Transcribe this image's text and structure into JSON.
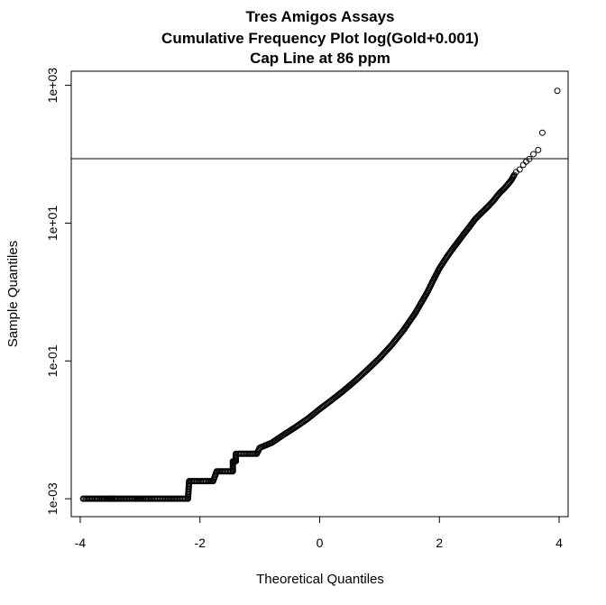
{
  "chart_data": {
    "type": "scatter",
    "title": [
      "Tres Amigos Assays",
      "Cumulative Frequency Plot log(Gold+0.001)",
      "Cap Line at 86 ppm"
    ],
    "xlabel": "Theoretical Quantiles",
    "ylabel": "Sample Quantiles",
    "x_ticks": [
      {
        "value": -4,
        "label": "-4"
      },
      {
        "value": -2,
        "label": "-2"
      },
      {
        "value": 0,
        "label": "0"
      },
      {
        "value": 2,
        "label": "2"
      },
      {
        "value": 4,
        "label": "4"
      }
    ],
    "y_ticks": [
      {
        "value": 0.001,
        "label": "1e-03"
      },
      {
        "value": 0.1,
        "label": "1e-01"
      },
      {
        "value": 10,
        "label": "1e+01"
      },
      {
        "value": 1000,
        "label": "1e+03"
      }
    ],
    "xlim": [
      -4.15,
      4.15
    ],
    "ylim": [
      0.00055,
      1600
    ],
    "y_scale": "log",
    "grid": false,
    "cap_line": {
      "value": 86,
      "label": "Cap Line at 86 ppm"
    },
    "curve_points": [
      [
        -3.95,
        0.001
      ],
      [
        -3.75,
        0.001
      ],
      [
        -3.6,
        0.001
      ],
      [
        -3.5,
        0.001
      ],
      [
        -3.4,
        0.001
      ],
      [
        -3.33,
        0.001
      ],
      [
        -3.27,
        0.001
      ],
      [
        -3.2,
        0.001
      ],
      [
        -3.13,
        0.001
      ],
      [
        -3.05,
        0.001
      ],
      [
        -2.95,
        0.001
      ],
      [
        -2.8,
        0.001
      ],
      [
        -2.6,
        0.001
      ],
      [
        -2.4,
        0.001
      ],
      [
        -2.2,
        0.001
      ],
      [
        -2.18,
        0.0018
      ],
      [
        -2.05,
        0.0018
      ],
      [
        -1.9,
        0.0018
      ],
      [
        -1.78,
        0.0018
      ],
      [
        -1.72,
        0.0025
      ],
      [
        -1.6,
        0.0025
      ],
      [
        -1.45,
        0.0025
      ],
      [
        -1.45,
        0.0035
      ],
      [
        -1.4,
        0.0035
      ],
      [
        -1.4,
        0.0045
      ],
      [
        -1.2,
        0.0045
      ],
      [
        -1.05,
        0.0045
      ],
      [
        -1.0,
        0.0055
      ],
      [
        -0.8,
        0.0065
      ],
      [
        -0.6,
        0.0085
      ],
      [
        -0.4,
        0.011
      ],
      [
        -0.2,
        0.0145
      ],
      [
        0.0,
        0.02
      ],
      [
        0.2,
        0.027
      ],
      [
        0.4,
        0.037
      ],
      [
        0.6,
        0.052
      ],
      [
        0.8,
        0.075
      ],
      [
        1.0,
        0.11
      ],
      [
        1.2,
        0.17
      ],
      [
        1.4,
        0.28
      ],
      [
        1.6,
        0.5
      ],
      [
        1.8,
        1.0
      ],
      [
        1.9,
        1.5
      ],
      [
        2.0,
        2.2
      ],
      [
        2.1,
        3.0
      ],
      [
        2.2,
        4.0
      ],
      [
        2.3,
        5.2
      ],
      [
        2.4,
        6.8
      ],
      [
        2.5,
        8.8
      ],
      [
        2.6,
        11.5
      ],
      [
        2.7,
        14.0
      ],
      [
        2.8,
        17.0
      ],
      [
        2.9,
        21.0
      ],
      [
        3.0,
        27.0
      ],
      [
        3.1,
        33.0
      ],
      [
        3.2,
        42.0
      ],
      [
        3.25,
        50.0
      ]
    ],
    "outliers": [
      [
        -3.95,
        0.001
      ],
      [
        -3.72,
        0.001
      ],
      [
        -3.6,
        0.001
      ],
      [
        -3.5,
        0.001
      ],
      [
        -3.42,
        0.001
      ],
      [
        3.28,
        55.0
      ],
      [
        3.34,
        60.0
      ],
      [
        3.4,
        70.0
      ],
      [
        3.45,
        78.0
      ],
      [
        3.5,
        85.0
      ],
      [
        3.57,
        100.0
      ],
      [
        3.65,
        115.0
      ],
      [
        3.72,
        205.0
      ],
      [
        3.97,
        830.0
      ]
    ]
  }
}
